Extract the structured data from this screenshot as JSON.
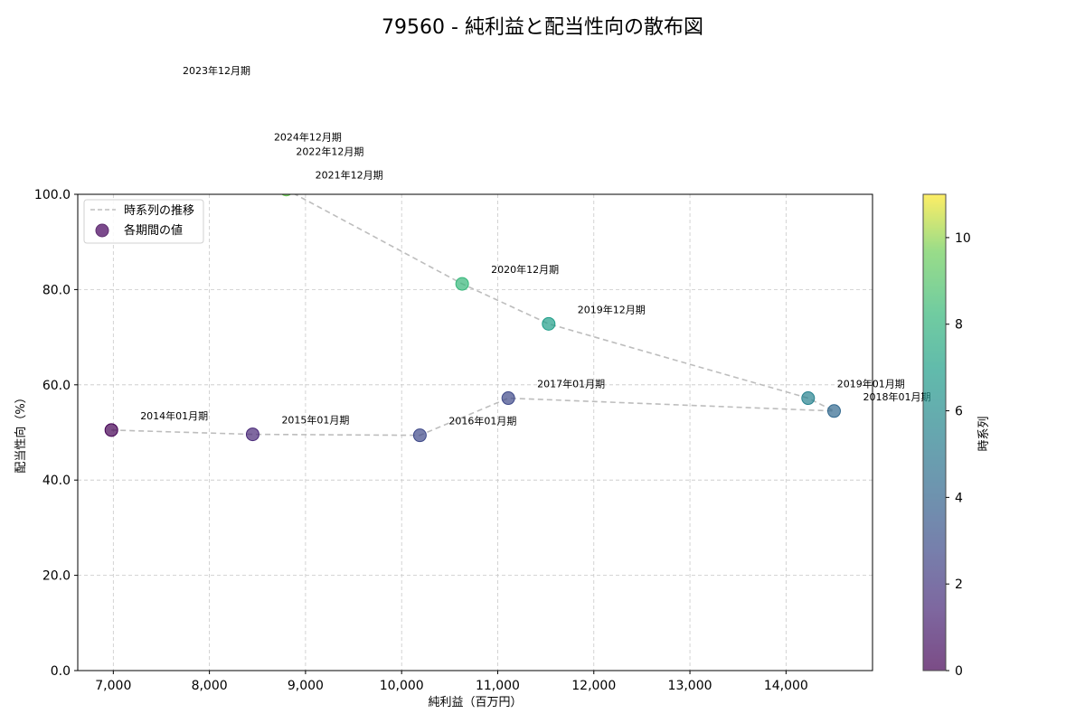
{
  "chart_data": {
    "type": "scatter",
    "title": "79560 - 純利益と配当性向の散布図",
    "xlabel": "純利益（百万円）",
    "ylabel": "配当性向（%）",
    "xlim": [
      6630,
      14900
    ],
    "ylim": [
      0,
      100
    ],
    "xticks": [
      7000,
      8000,
      9000,
      10000,
      11000,
      12000,
      13000,
      14000
    ],
    "xtick_labels": [
      "7,000",
      "8,000",
      "9,000",
      "10,000",
      "11,000",
      "12,000",
      "13,000",
      "14,000"
    ],
    "yticks": [
      0,
      20,
      40,
      60,
      80,
      100
    ],
    "ytick_labels": [
      "0.0",
      "20.0",
      "40.0",
      "60.0",
      "80.0",
      "100.0"
    ],
    "grid": true,
    "legend": {
      "position": "upper left",
      "entries": [
        "時系列の推移",
        "各期間の値"
      ]
    },
    "colorbar": {
      "label": "時系列",
      "range": [
        0,
        11
      ],
      "ticks": [
        0,
        2,
        4,
        6,
        8,
        10
      ],
      "colormap": "viridis"
    },
    "points": [
      {
        "label": "2014年01月期",
        "x": 6980,
        "y": 50.5,
        "t": 0
      },
      {
        "label": "2015年01月期",
        "x": 8450,
        "y": 49.6,
        "t": 1
      },
      {
        "label": "2016年01月期",
        "x": 10190,
        "y": 49.4,
        "t": 2
      },
      {
        "label": "2017年01月期",
        "x": 11110,
        "y": 57.2,
        "t": 3
      },
      {
        "label": "2018年01月期",
        "x": 14500,
        "y": 54.5,
        "t": 4
      },
      {
        "label": "2019年01月期",
        "x": 14230,
        "y": 57.2,
        "t": 5
      },
      {
        "label": "2019年12月期",
        "x": 11530,
        "y": 72.8,
        "t": 6
      },
      {
        "label": "2020年12月期",
        "x": 10630,
        "y": 81.2,
        "t": 7
      },
      {
        "label": "2021年12月期",
        "x": 8800,
        "y": 101.0,
        "t": 8
      },
      {
        "label": "2022年12月期",
        "x": 8600,
        "y": 106.0,
        "t": 9
      },
      {
        "label": "2023年12月期",
        "x": 7420,
        "y": 123.0,
        "t": 10
      },
      {
        "label": "2024年12月期",
        "x": 8370,
        "y": 109.0,
        "t": 11
      }
    ]
  }
}
